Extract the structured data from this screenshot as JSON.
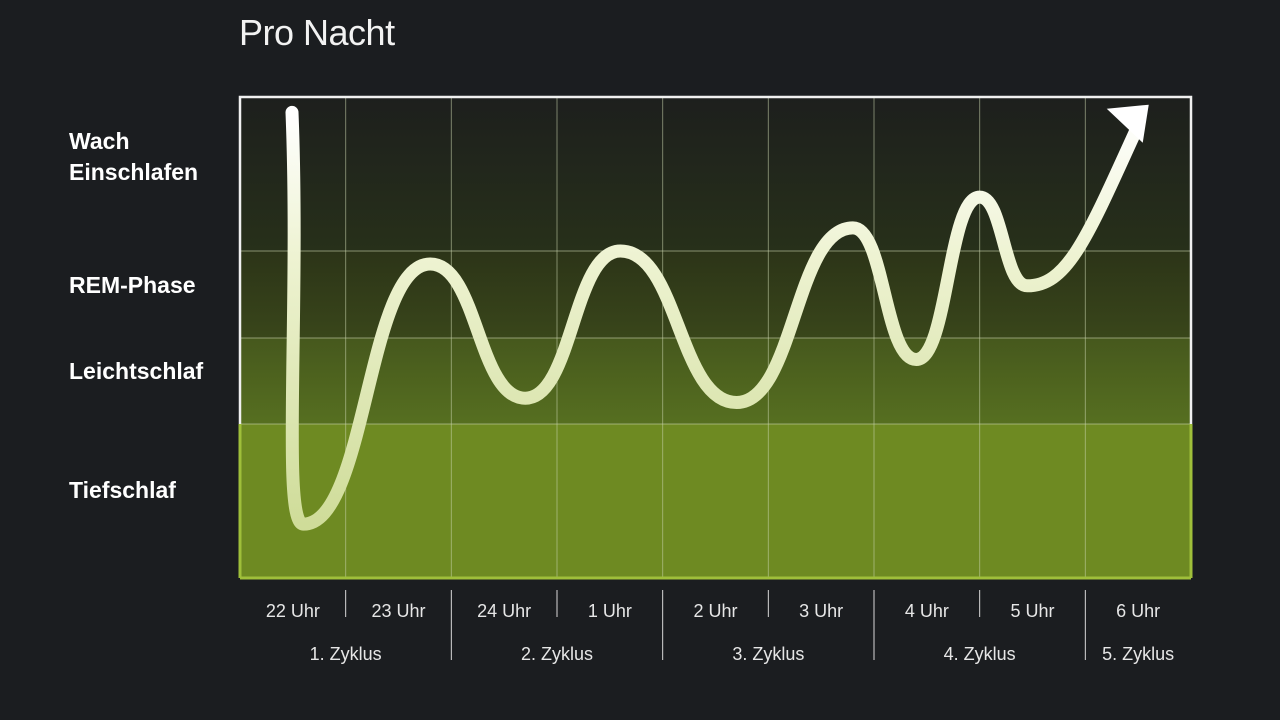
{
  "header": {
    "subtitle": "Pro Nacht"
  },
  "colors": {
    "background": "#1b1d20",
    "deep_sleep": "#6e8a22",
    "light_sleep": "#4a5c1c",
    "rem": "#31391a",
    "wake_top": "#1e201c",
    "curve": "#e8f0c8",
    "grid": "#b8c49a"
  },
  "chart_data": {
    "type": "line",
    "title": "",
    "subtitle": "Pro Nacht",
    "y_categories": [
      "Tiefschlaf",
      "Leichtschlaf",
      "REM-Phase",
      "Wach Einschlafen"
    ],
    "y_label_lines": [
      [
        "Wach",
        "Einschlafen"
      ],
      [
        "REM-Phase"
      ],
      [
        "Leichtschlaf"
      ],
      [
        "Tiefschlaf"
      ]
    ],
    "x_ticks": [
      "22 Uhr",
      "23 Uhr",
      "24 Uhr",
      "1 Uhr",
      "2 Uhr",
      "3 Uhr",
      "4 Uhr",
      "5 Uhr",
      "6 Uhr"
    ],
    "cycles": [
      "1. Zyklus",
      "2. Zyklus",
      "3. Zyklus",
      "4. Zyklus",
      "5. Zyklus"
    ],
    "xlim": [
      21.5,
      30.5
    ],
    "ylim": [
      0,
      4
    ],
    "series": [
      {
        "x": [
          21.5,
          22.1,
          23.3,
          24.2,
          25.1,
          26.2,
          27.3,
          27.9,
          28.5,
          28.95
        ],
        "y": [
          3.9,
          0.35,
          2.85,
          1.3,
          3.0,
          1.25,
          3.15,
          1.75,
          3.35,
          2.6
        ]
      }
    ],
    "end_arrow_target": {
      "x": 30.1,
      "y": 3.95
    },
    "grid": true
  }
}
